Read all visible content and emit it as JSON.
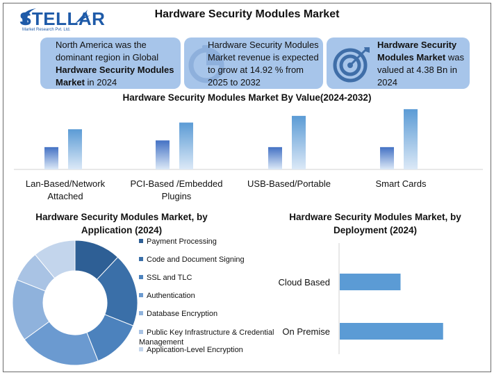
{
  "header": {
    "logo_text": "STELLAR",
    "logo_sub": "Market Research Pvt. Ltd.",
    "title": "Hardware Security Modules Market"
  },
  "callouts": [
    {
      "parts": [
        {
          "t": "North America was the dominant region in Global ",
          "b": false
        },
        {
          "t": "Hardware Security Modules Market",
          "b": true
        },
        {
          "t": " in 2024",
          "b": false
        }
      ],
      "icon": "none"
    },
    {
      "parts": [
        {
          "t": "Hardware Security Modules Market revenue is expected to grow at 14.92 % from 2025 to 2032",
          "b": false
        }
      ],
      "icon": "pie-clock-icon"
    },
    {
      "parts": [
        {
          "t": "Hardware Security Modules Market",
          "b": true
        },
        {
          "t": " was valued at 4.38 Bn in 2024",
          "b": false
        }
      ],
      "icon": "target-icon"
    }
  ],
  "colors": {
    "callout_bg": "#a7c5ea",
    "bar_light_top": "#5b9bd5",
    "bar_dark_top": "#4472c4",
    "bar_fade": "#dce9f7"
  },
  "chart_data": [
    {
      "type": "bar",
      "title": "Hardware Security Modules Market By Value(2024-2032)",
      "categories": [
        "Lan-Based/Network Attached",
        "PCI-Based /Embedded Plugins",
        "USB-Based/Portable",
        "Smart Cards"
      ],
      "series": [
        {
          "values": [
            1.0,
            1.3,
            1.0,
            1.0
          ]
        },
        {
          "values": [
            1.8,
            2.1,
            2.4,
            2.7
          ]
        }
      ],
      "ylim": [
        0,
        2.8
      ],
      "grid": false
    },
    {
      "type": "pie",
      "title": "Hardware Security Modules Market, by Application (2024)",
      "labels": [
        "Payment Processing",
        "Code and Document Signing",
        "SSL and TLC",
        "Authentication",
        "Database Encryption",
        "Public Key Infrastructure & Credential Management",
        "Application-Level Encryption"
      ],
      "values": [
        12,
        19,
        13,
        21,
        16,
        8,
        11
      ],
      "colors": [
        "#2e5f95",
        "#3a6fa8",
        "#4c82bd",
        "#6b9ad0",
        "#8fb2dc",
        "#a9c3e4",
        "#c3d5ec"
      ],
      "donut": true,
      "legend": "right"
    },
    {
      "type": "bar",
      "orientation": "horizontal",
      "title": "Hardware Security Modules Market, by Deployment (2024)",
      "categories": [
        "Cloud Based",
        "On Premise"
      ],
      "values": [
        1.0,
        1.7
      ],
      "xlim": [
        0,
        2.0
      ],
      "grid": false
    }
  ]
}
